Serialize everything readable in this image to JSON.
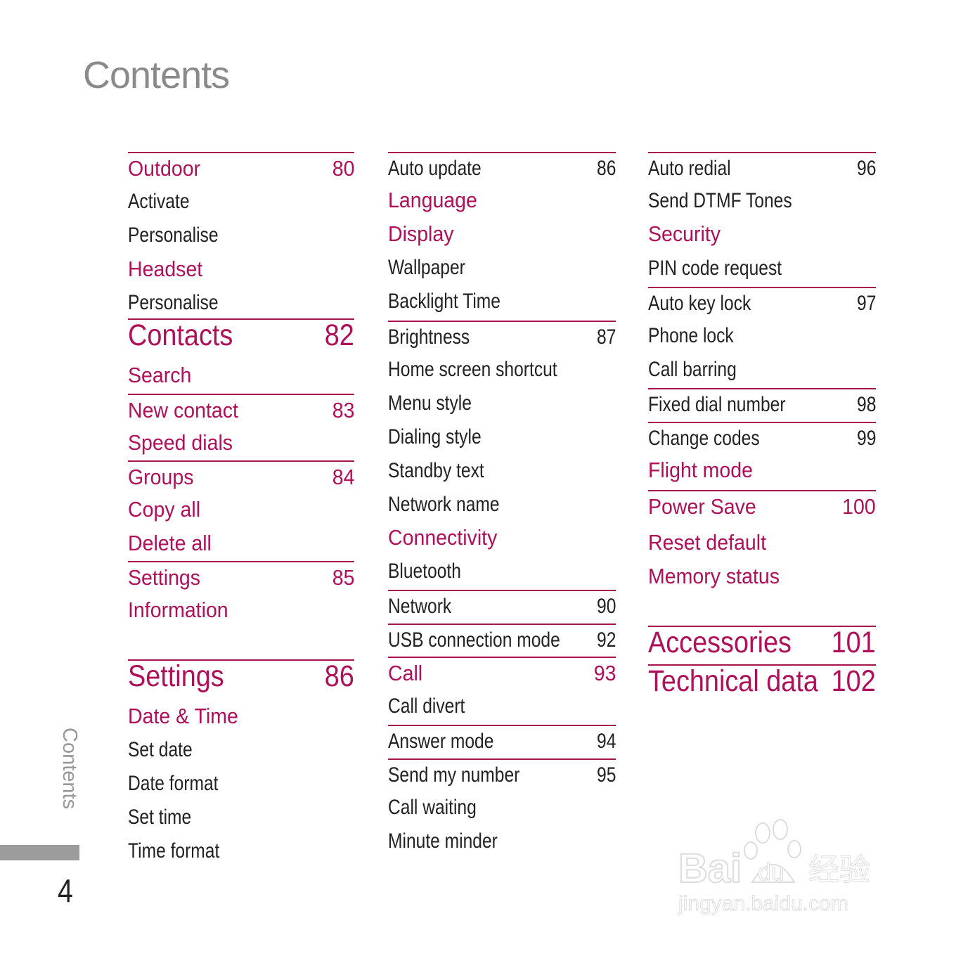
{
  "title": "Contents",
  "side_label": "Contents",
  "page_number": "4",
  "accent_color": "#b0105a",
  "watermark": {
    "brand": "Baidu经验",
    "url": "jingyan.baidu.com"
  },
  "columns": [
    {
      "items": [
        {
          "label": "Outdoor",
          "page": "80",
          "level": "topic",
          "rule": true
        },
        {
          "label": "Activate",
          "level": "section"
        },
        {
          "label": "Personalise",
          "level": "section"
        },
        {
          "label": "Headset",
          "level": "topic"
        },
        {
          "label": "Personalise",
          "level": "section"
        },
        {
          "label": "Contacts",
          "page": "82",
          "level": "chapter",
          "rule": true
        },
        {
          "label": "Search",
          "level": "topic"
        },
        {
          "label": "New contact",
          "page": "83",
          "level": "topic",
          "rule": true
        },
        {
          "label": "Speed dials",
          "level": "topic"
        },
        {
          "label": "Groups",
          "page": "84",
          "level": "topic",
          "rule": true
        },
        {
          "label": "Copy all",
          "level": "topic"
        },
        {
          "label": "Delete all",
          "level": "topic"
        },
        {
          "label": "Settings",
          "page": "85",
          "level": "topic",
          "rule": true
        },
        {
          "label": "Information",
          "level": "topic"
        },
        {
          "label": "Settings",
          "page": "86",
          "level": "chapter",
          "rule": true
        },
        {
          "label": "Date & Time",
          "level": "topic"
        },
        {
          "label": "Set date",
          "level": "section"
        },
        {
          "label": "Date format",
          "level": "section"
        },
        {
          "label": "Set time",
          "level": "section"
        },
        {
          "label": "Time format",
          "level": "section"
        }
      ]
    },
    {
      "items": [
        {
          "label": "Auto update",
          "page": "86",
          "level": "section",
          "rule": true
        },
        {
          "label": "Language",
          "level": "topic"
        },
        {
          "label": "Display",
          "level": "topic"
        },
        {
          "label": "Wallpaper",
          "level": "section"
        },
        {
          "label": "Backlight Time",
          "level": "section"
        },
        {
          "label": "Brightness",
          "page": "87",
          "level": "section",
          "rule": true
        },
        {
          "label": "Home screen shortcut",
          "level": "section"
        },
        {
          "label": "Menu style",
          "level": "section"
        },
        {
          "label": "Dialing style",
          "level": "section"
        },
        {
          "label": "Standby text",
          "level": "section"
        },
        {
          "label": "Network name",
          "level": "section"
        },
        {
          "label": "Connectivity",
          "level": "topic"
        },
        {
          "label": "Bluetooth",
          "level": "section"
        },
        {
          "label": "Network",
          "page": "90",
          "level": "section",
          "rule": true
        },
        {
          "label": "USB connection mode",
          "page": "92",
          "level": "section",
          "rule": true
        },
        {
          "label": "Call",
          "page": "93",
          "level": "topic",
          "rule": true
        },
        {
          "label": "Call divert",
          "level": "section"
        },
        {
          "label": "Answer mode",
          "page": "94",
          "level": "section",
          "rule": true
        },
        {
          "label": "Send my number",
          "page": "95",
          "level": "section",
          "rule": true
        },
        {
          "label": "Call waiting",
          "level": "section"
        },
        {
          "label": "Minute minder",
          "level": "section"
        }
      ]
    },
    {
      "items": [
        {
          "label": "Auto redial",
          "page": "96",
          "level": "section",
          "rule": true
        },
        {
          "label": "Send DTMF Tones",
          "level": "section"
        },
        {
          "label": "Security",
          "level": "topic"
        },
        {
          "label": "PIN code request",
          "level": "section"
        },
        {
          "label": "Auto key lock",
          "page": "97",
          "level": "section",
          "rule": true
        },
        {
          "label": "Phone lock",
          "level": "section"
        },
        {
          "label": "Call barring",
          "level": "section"
        },
        {
          "label": "Fixed dial number",
          "page": "98",
          "level": "section",
          "rule": true
        },
        {
          "label": "Change codes",
          "page": "99",
          "level": "section",
          "rule": true
        },
        {
          "label": "Flight mode",
          "level": "topic"
        },
        {
          "label": "Power Save",
          "page": "100",
          "level": "topic",
          "rule": true
        },
        {
          "label": "Reset default",
          "level": "topic"
        },
        {
          "label": "Memory status",
          "level": "topic"
        },
        {
          "label": "Accessories",
          "page": "101",
          "level": "chapter",
          "rule": true
        },
        {
          "label": "Technical data",
          "page": "102",
          "level": "chapter",
          "rule": true
        }
      ]
    }
  ]
}
